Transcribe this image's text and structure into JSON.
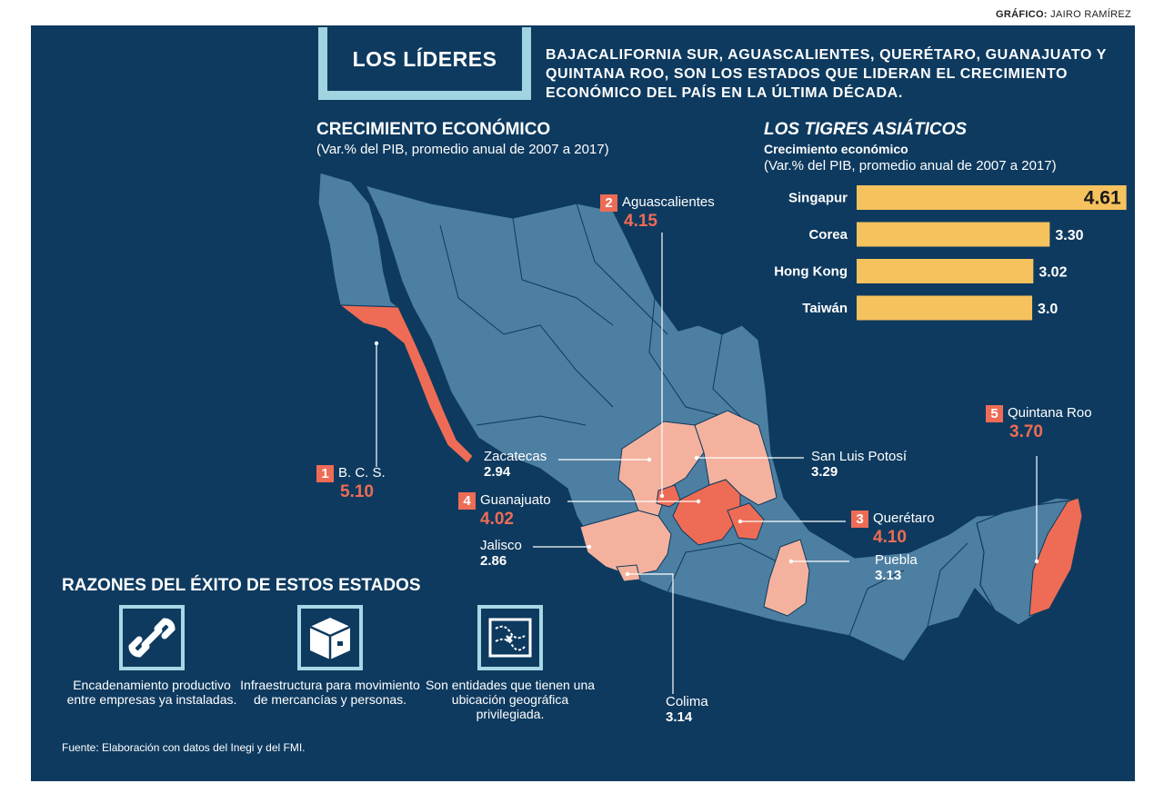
{
  "credit": {
    "label": "GRÁFICO:",
    "name": "JAIRO RAMÍREZ"
  },
  "header": {
    "title": "LOS LÍDERES",
    "headline": "BAJACALIFORNIA SUR, AGUASCALIENTES, QUERÉTARO, GUANAJUATO Y QUINTANA ROO, SON LOS ESTADOS QUE LIDERAN EL CRECIMIENTO ECONÓMICO DEL PAÍS EN LA ÚLTIMA DÉCADA."
  },
  "map_section": {
    "title": "CRECIMIENTO ECONÓMICO",
    "subtitle": "(Var.% del PIB, promedio anual de 2007 a 2017)"
  },
  "tigers_section": {
    "title": "LOS TIGRES ASIÁTICOS",
    "subtitle1": "Crecimiento económico",
    "subtitle2": "(Var.% del PIB, promedio anual de 2007 a 2017)"
  },
  "colors": {
    "background": "#0e3a5f",
    "land": "#4c7fa1",
    "leader": "#ee6c55",
    "highlight": "#f4b29e",
    "bar": "#f6c25e",
    "accent": "#9fd4e0"
  },
  "chart_data": [
    {
      "type": "map",
      "title": "CRECIMIENTO ECONÓMICO",
      "subtitle": "(Var.% del PIB, promedio anual de 2007 a 2017)",
      "states": [
        {
          "rank": "1",
          "name": "B. C. S.",
          "value": "5.10",
          "group": "leader"
        },
        {
          "rank": "2",
          "name": "Aguascalientes",
          "value": "4.15",
          "group": "leader"
        },
        {
          "rank": "3",
          "name": "Querétaro",
          "value": "4.10",
          "group": "leader"
        },
        {
          "rank": "4",
          "name": "Guanajuato",
          "value": "4.02",
          "group": "leader"
        },
        {
          "rank": "5",
          "name": "Quintana Roo",
          "value": "3.70",
          "group": "leader"
        },
        {
          "rank": "",
          "name": "Zacatecas",
          "value": "2.94",
          "group": "other"
        },
        {
          "rank": "",
          "name": "San Luis Potosí",
          "value": "3.29",
          "group": "other"
        },
        {
          "rank": "",
          "name": "Jalisco",
          "value": "2.86",
          "group": "other"
        },
        {
          "rank": "",
          "name": "Puebla",
          "value": "3.13",
          "group": "other"
        },
        {
          "rank": "",
          "name": "Colima",
          "value": "3.14",
          "group": "other"
        }
      ]
    },
    {
      "type": "bar",
      "title": "LOS TIGRES ASIÁTICOS",
      "categories": [
        "Singapur",
        "Corea",
        "Hong Kong",
        "Taiwán"
      ],
      "values": [
        4.61,
        3.3,
        3.02,
        3.0
      ],
      "value_labels": [
        "4.61",
        "3.30",
        "3.02",
        "3.0"
      ],
      "xlim": [
        0,
        5
      ]
    }
  ],
  "reasons": {
    "title": "RAZONES DEL ÉXITO DE ESTOS ESTADOS",
    "items": [
      {
        "icon": "chain-link-icon",
        "text": "Encadenamiento productivo entre empresas ya instaladas."
      },
      {
        "icon": "box-icon",
        "text": "Infraestructura para movimiento de mercancías y personas."
      },
      {
        "icon": "map-icon",
        "text": "Son entidades que tienen una ubicación geográfica privilegiada."
      }
    ]
  },
  "source": "Fuente: Elaboración con datos del Inegi y del FMI."
}
